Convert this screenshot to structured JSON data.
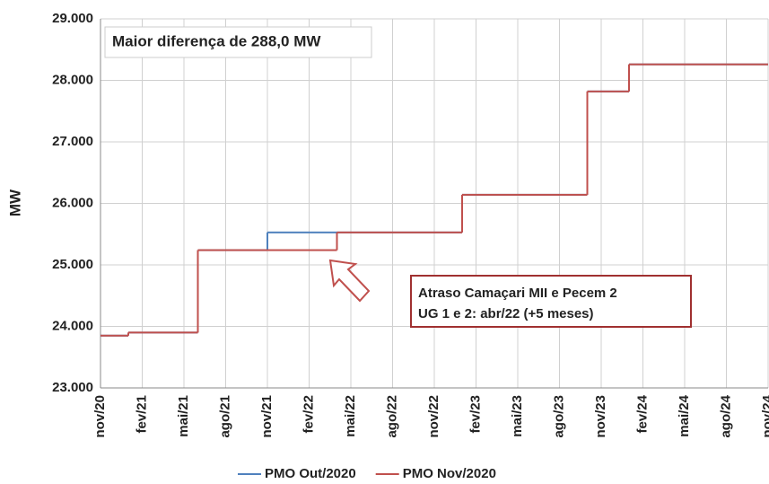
{
  "chart_data": {
    "type": "step",
    "title": "Maior diferença de 288,0 MW",
    "y_label": "MW",
    "annotation": [
      "Atraso Camaçari MII e Pecem 2",
      "UG 1 e 2: abr/22 (+5 meses)"
    ],
    "categories": [
      "nov/20",
      null,
      null,
      "fev/21",
      null,
      null,
      "mai/21",
      null,
      null,
      "ago/21",
      null,
      null,
      "nov/21",
      null,
      null,
      "fev/22",
      null,
      null,
      "mai/22",
      null,
      null,
      "ago/22",
      null,
      null,
      "nov/22",
      null,
      null,
      "fev/23",
      null,
      null,
      "mai/23",
      null,
      null,
      "ago/23",
      null,
      null,
      "nov/23",
      null,
      null,
      "fev/24",
      null,
      null,
      "mai/24",
      null,
      null,
      "ago/24",
      null,
      null,
      "nov/24"
    ],
    "series": [
      {
        "name": "PMO Out/2020",
        "color": "#4f81bd",
        "values": [
          23850,
          23850,
          23900,
          23900,
          23900,
          23900,
          23900,
          25240,
          25240,
          25240,
          25240,
          25240,
          25528,
          25528,
          25528,
          25528,
          25528,
          25528,
          25528,
          25528,
          25528,
          25528,
          25528,
          25528,
          25528,
          25528,
          26140,
          26140,
          26140,
          26140,
          26140,
          26140,
          26140,
          26140,
          26140,
          27820,
          27820,
          27820,
          28260,
          28260,
          28260,
          28260,
          28260,
          28260,
          28260,
          28260,
          28260,
          28260,
          28260
        ]
      },
      {
        "name": "PMO Nov/2020",
        "color": "#c0504d",
        "values": [
          23850,
          23850,
          23900,
          23900,
          23900,
          23900,
          23900,
          25240,
          25240,
          25240,
          25240,
          25240,
          25240,
          25240,
          25240,
          25240,
          25240,
          25528,
          25528,
          25528,
          25528,
          25528,
          25528,
          25528,
          25528,
          25528,
          26140,
          26140,
          26140,
          26140,
          26140,
          26140,
          26140,
          26140,
          26140,
          27820,
          27820,
          27820,
          28260,
          28260,
          28260,
          28260,
          28260,
          28260,
          28260,
          28260,
          28260,
          28260,
          28260
        ]
      }
    ],
    "ylim": [
      23000,
      29000
    ],
    "yticks": [
      {
        "value": 23000,
        "label": "23.000"
      },
      {
        "value": 24000,
        "label": "24.000"
      },
      {
        "value": 25000,
        "label": "25.000"
      },
      {
        "value": 26000,
        "label": "26.000"
      },
      {
        "value": 27000,
        "label": "27.000"
      },
      {
        "value": 28000,
        "label": "28.000"
      },
      {
        "value": 29000,
        "label": "29.000"
      }
    ],
    "grid": true,
    "legend": "bottom"
  }
}
